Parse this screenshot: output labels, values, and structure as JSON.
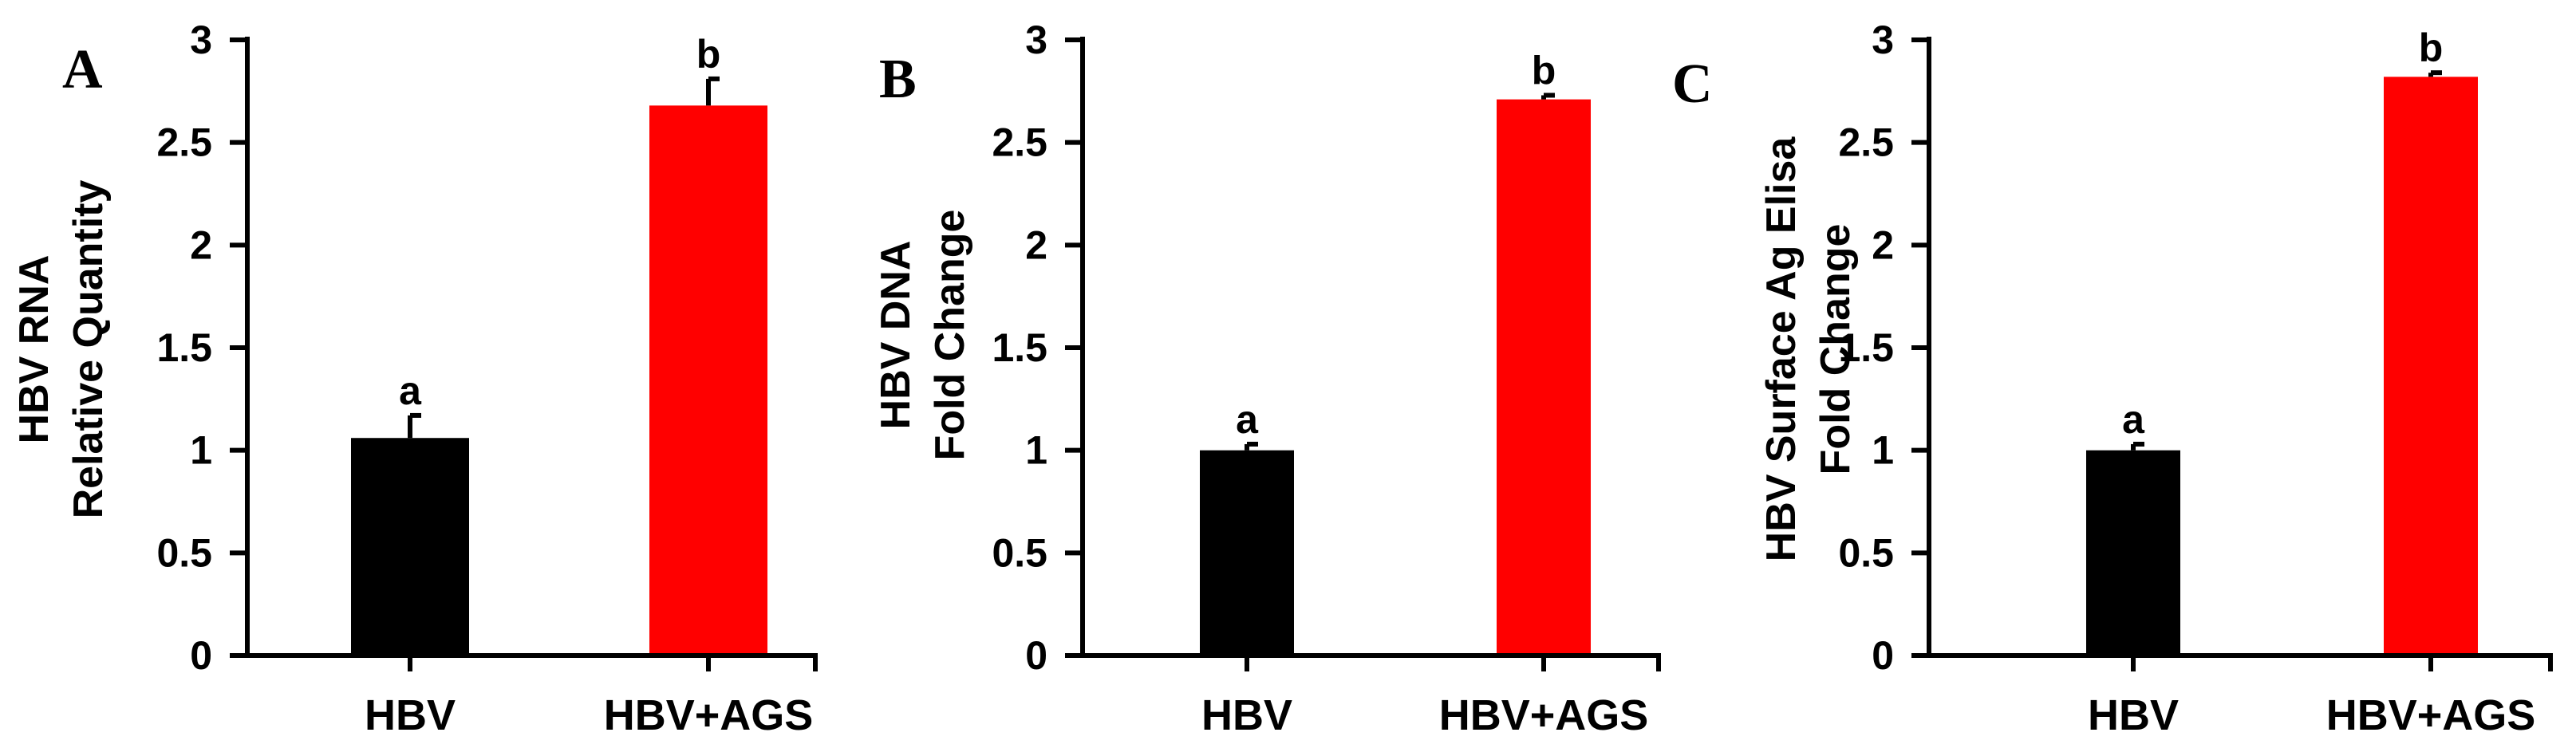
{
  "chart_data": [
    {
      "type": "bar",
      "panel": "A",
      "ylabel_lines": [
        "HBV RNA",
        "Relative Quantity"
      ],
      "categories": [
        "HBV",
        "HBV+AGS"
      ],
      "values": [
        1.06,
        2.68
      ],
      "errors": [
        0.11,
        0.13
      ],
      "significance": [
        "a",
        "b"
      ],
      "colors": [
        "#000000",
        "#ff0000"
      ],
      "ylim": [
        0,
        3
      ],
      "yticks": [
        "0",
        "0.5",
        "1",
        "1.5",
        "2",
        "2.5",
        "3"
      ]
    },
    {
      "type": "bar",
      "panel": "B",
      "ylabel_lines": [
        "HBV DNA",
        "Fold Change"
      ],
      "categories": [
        "HBV",
        "HBV+AGS"
      ],
      "values": [
        1.0,
        2.71
      ],
      "errors": [
        0.03,
        0.02
      ],
      "significance": [
        "a",
        "b"
      ],
      "colors": [
        "#000000",
        "#ff0000"
      ],
      "ylim": [
        0,
        3
      ],
      "yticks": [
        "0",
        "0.5",
        "1",
        "1.5",
        "2",
        "2.5",
        "3"
      ]
    },
    {
      "type": "bar",
      "panel": "C",
      "ylabel_lines": [
        "HBV Surface Ag Elisa",
        "Fold Change"
      ],
      "categories": [
        "HBV",
        "HBV+AGS"
      ],
      "values": [
        1.0,
        2.82
      ],
      "errors": [
        0.03,
        0.02
      ],
      "significance": [
        "a",
        "b"
      ],
      "colors": [
        "#000000",
        "#ff0000"
      ],
      "ylim": [
        0,
        3
      ],
      "yticks": [
        "0",
        "0.5",
        "1",
        "1.5",
        "2",
        "2.5",
        "3"
      ]
    }
  ]
}
